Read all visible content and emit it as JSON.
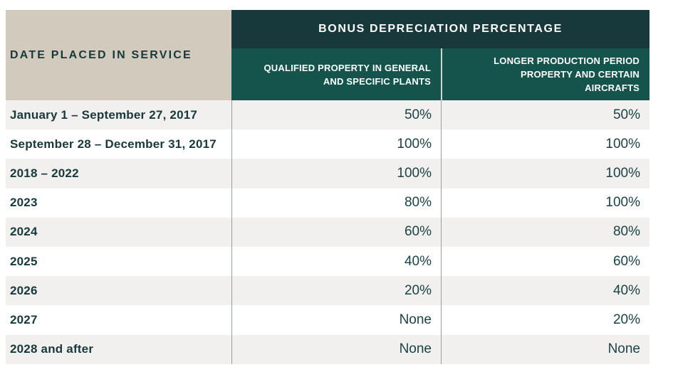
{
  "colors": {
    "header_dark_teal": "#17393c",
    "header_teal": "#14544c",
    "corner_beige": "#d1cabd",
    "row_stripe_gray": "#f1f0ee",
    "text_teal": "#17393c"
  },
  "table": {
    "header": {
      "date_column": "DATE PLACED IN SERVICE",
      "group_title": "BONUS DEPRECIATION PERCENTAGE",
      "col1": "QUALIFIED PROPERTY IN GENERAL AND SPECIFIC PLANTS",
      "col2": "LONGER PRODUCTION PERIOD PROPERTY AND CERTAIN AIRCRAFTS"
    },
    "rows": [
      {
        "date": "January 1 – September 27, 2017",
        "qualified_property": "50%",
        "longer_production": "50%"
      },
      {
        "date": "September 28 – December 31, 2017",
        "qualified_property": "100%",
        "longer_production": "100%"
      },
      {
        "date": "2018 – 2022",
        "qualified_property": "100%",
        "longer_production": "100%"
      },
      {
        "date": "2023",
        "qualified_property": "80%",
        "longer_production": "100%"
      },
      {
        "date": "2024",
        "qualified_property": "60%",
        "longer_production": "80%"
      },
      {
        "date": "2025",
        "qualified_property": "40%",
        "longer_production": "60%"
      },
      {
        "date": "2026",
        "qualified_property": "20%",
        "longer_production": "40%"
      },
      {
        "date": "2027",
        "qualified_property": "None",
        "longer_production": "20%"
      },
      {
        "date": "2028 and after",
        "qualified_property": "None",
        "longer_production": "None"
      }
    ]
  }
}
